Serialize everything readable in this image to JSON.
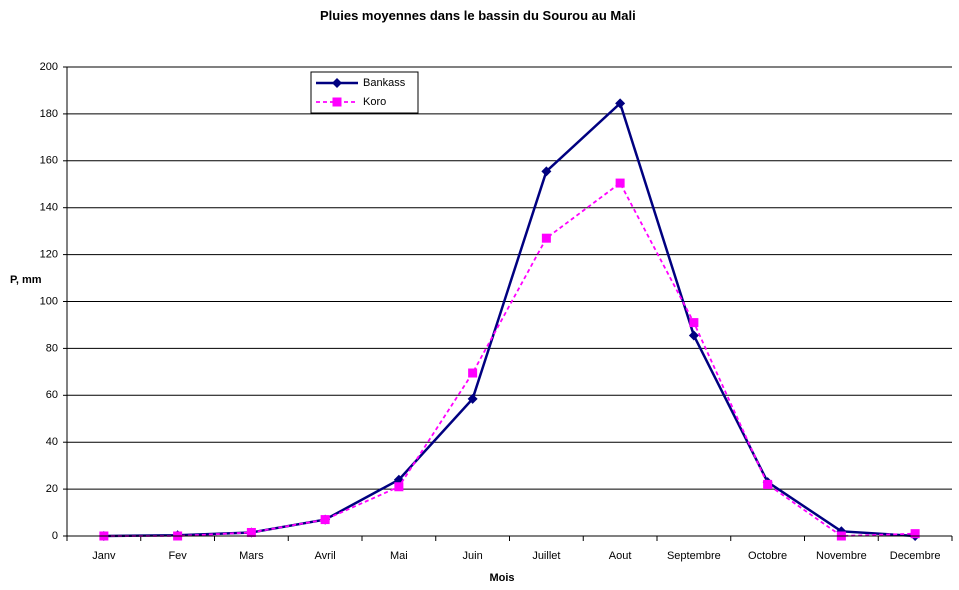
{
  "chart_data": {
    "type": "line",
    "title": "Pluies moyennes dans le bassin du Sourou au Mali",
    "x_label": "Mois",
    "y_label": "P, mm",
    "categories": [
      "Janv",
      "Fev",
      "Mars",
      "Avril",
      "Mai",
      "Juin",
      "Juillet",
      "Aout",
      "Septembre",
      "Octobre",
      "Novembre",
      "Decembre"
    ],
    "series": [
      {
        "name": "Bankass",
        "color": "#000080",
        "values": [
          0,
          0.3,
          1.5,
          7,
          24,
          58.5,
          155.5,
          184.5,
          85.5,
          23,
          2,
          0
        ]
      },
      {
        "name": "Koro",
        "color": "#ff00ff",
        "values": [
          0,
          0,
          1.5,
          7,
          21,
          69.5,
          127,
          150.5,
          91,
          22,
          0,
          1
        ]
      }
    ],
    "ylim": [
      0,
      200
    ],
    "yticks": [
      0,
      20,
      40,
      60,
      80,
      100,
      120,
      140,
      160,
      180,
      200
    ],
    "grid": true
  }
}
